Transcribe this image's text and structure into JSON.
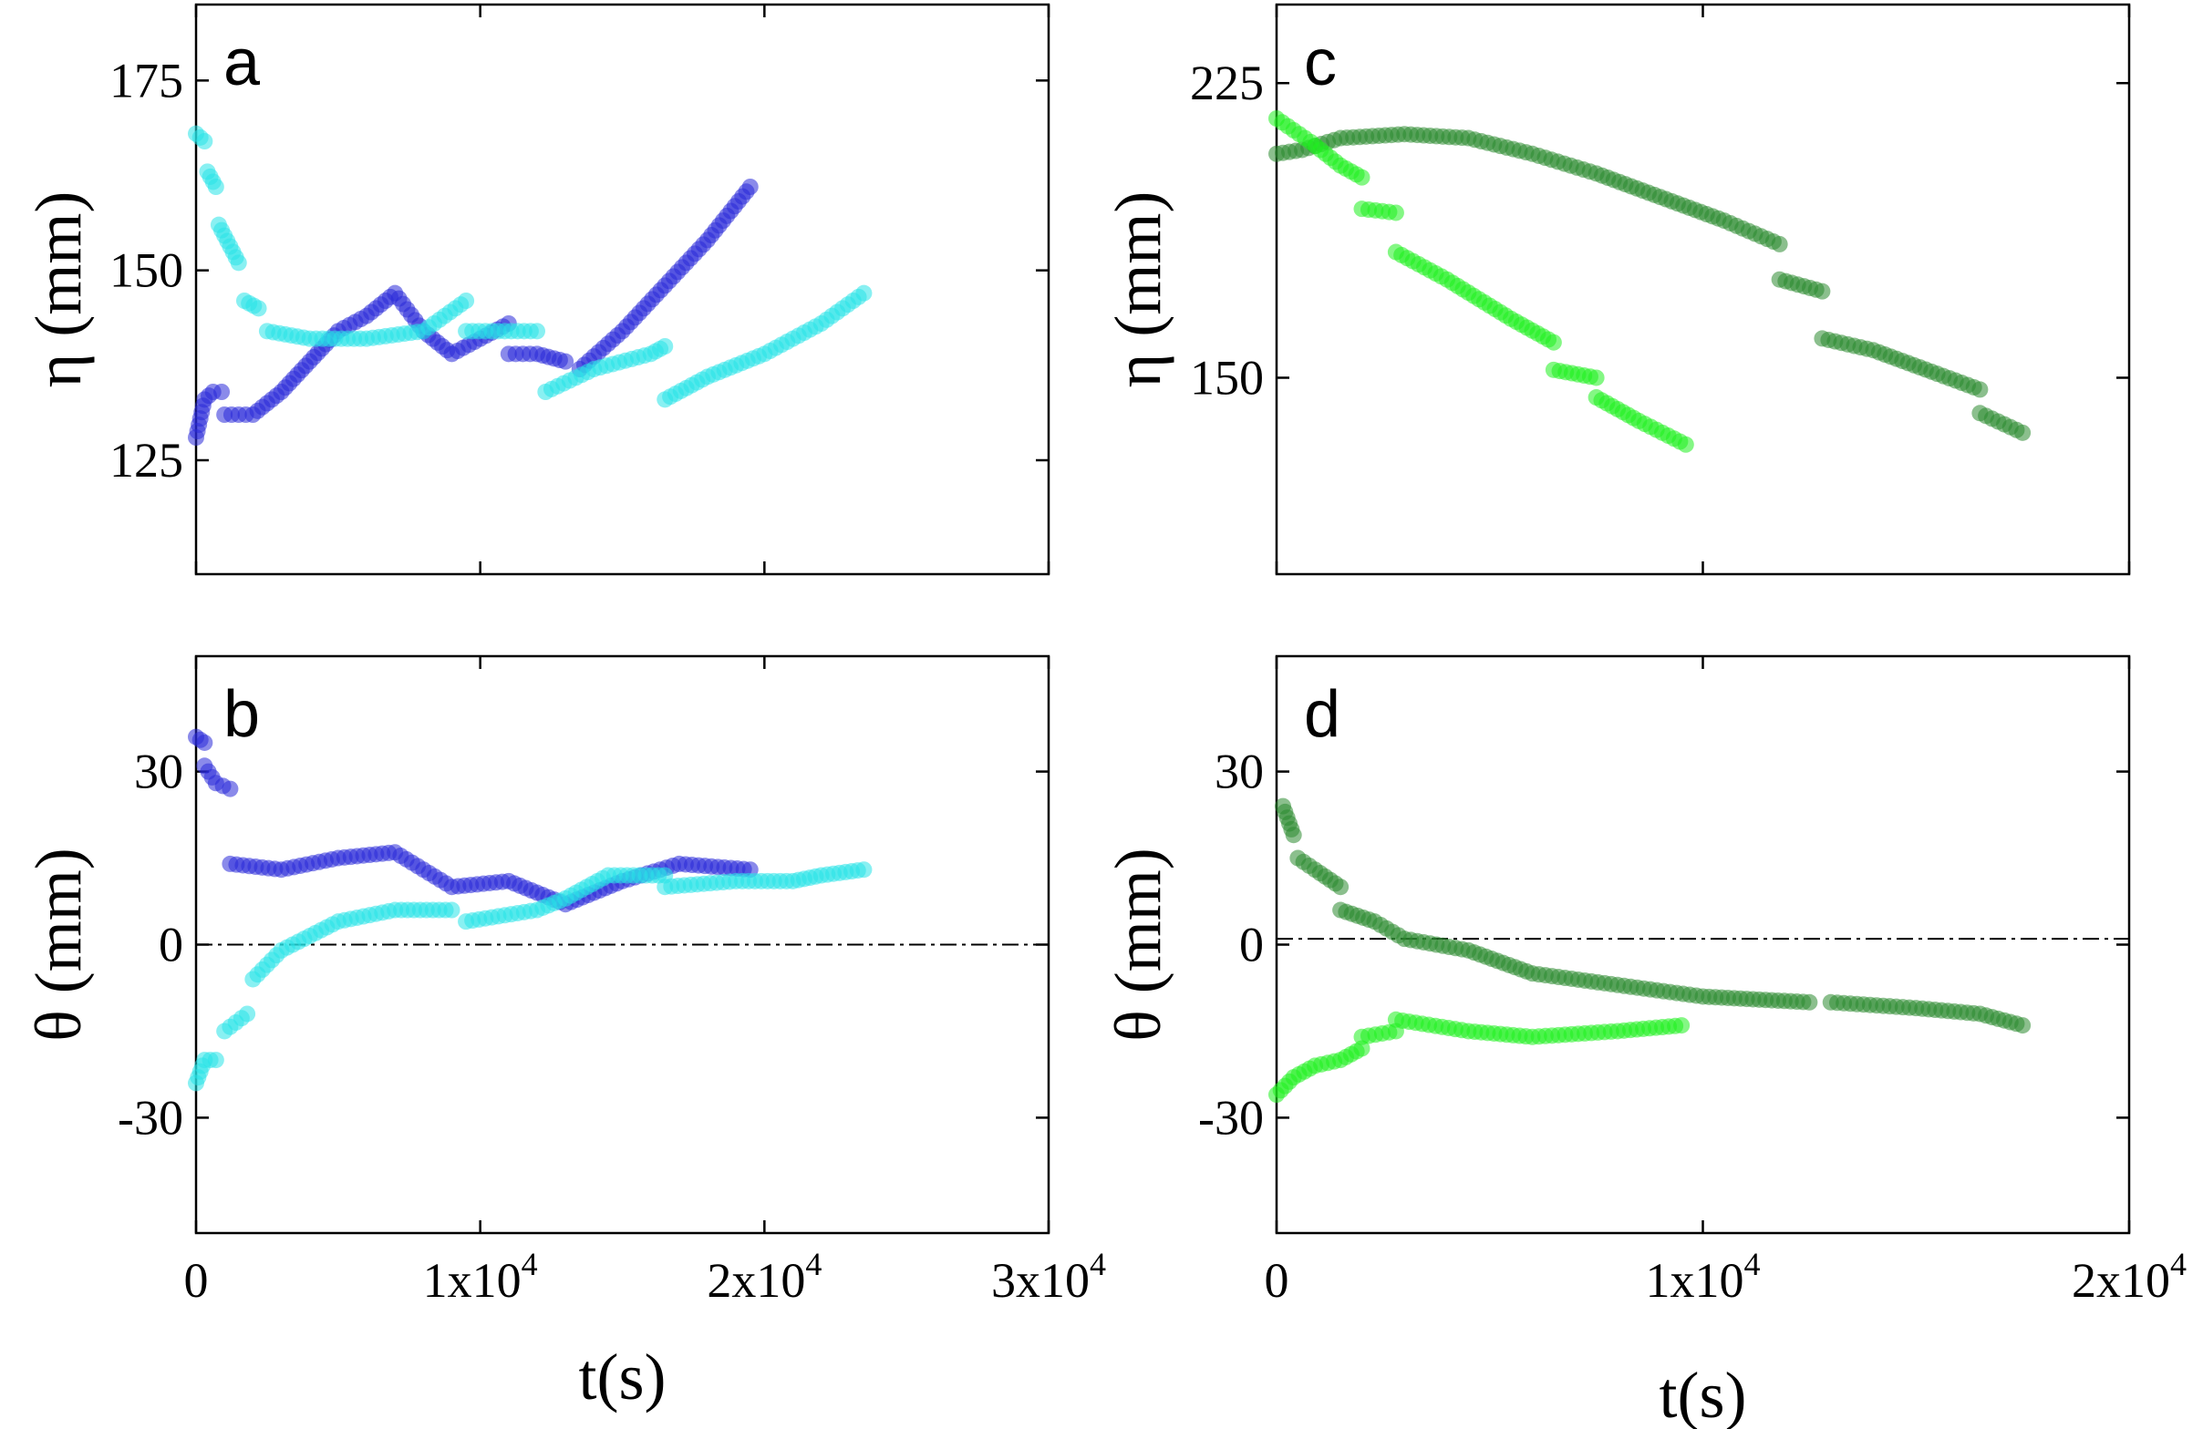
{
  "chart_data": [
    {
      "panel": "a",
      "type": "scatter",
      "ylabel": "η (mm)",
      "xlim": [
        0,
        30000
      ],
      "ylim": [
        110,
        185
      ],
      "x_ticks": [
        0,
        10000,
        20000,
        30000
      ],
      "y_ticks": [
        125,
        150,
        175
      ],
      "y_tick_labels": [
        "125",
        "150",
        "175"
      ],
      "series": [
        {
          "color": "#2a2ad8",
          "segments": [
            [
              [
                0,
                128
              ],
              [
                300,
                133
              ],
              [
                600,
                134
              ],
              [
                900,
                134
              ]
            ],
            [
              [
                1000,
                131
              ],
              [
                2000,
                131
              ],
              [
                3000,
                134
              ],
              [
                4000,
                138
              ],
              [
                5000,
                142
              ],
              [
                6000,
                144
              ],
              [
                7000,
                147
              ],
              [
                8000,
                142
              ],
              [
                9000,
                139
              ],
              [
                10000,
                141
              ],
              [
                11000,
                143
              ]
            ],
            [
              [
                11000,
                139
              ],
              [
                12000,
                139
              ],
              [
                13000,
                138
              ]
            ],
            [
              [
                13500,
                137
              ],
              [
                15000,
                142
              ],
              [
                16500,
                148
              ],
              [
                18000,
                154
              ],
              [
                19500,
                161
              ]
            ]
          ]
        },
        {
          "color": "#28e4e8",
          "segments": [
            [
              [
                0,
                168
              ],
              [
                300,
                167
              ]
            ],
            [
              [
                400,
                163
              ],
              [
                700,
                161
              ]
            ],
            [
              [
                800,
                156
              ],
              [
                1500,
                151
              ]
            ],
            [
              [
                1700,
                146
              ],
              [
                2200,
                145
              ]
            ],
            [
              [
                2500,
                142
              ],
              [
                4000,
                141
              ],
              [
                6000,
                141
              ],
              [
                8000,
                142
              ],
              [
                9500,
                146
              ]
            ],
            [
              [
                9500,
                142
              ],
              [
                12000,
                142
              ]
            ],
            [
              [
                12300,
                134
              ],
              [
                14000,
                137
              ],
              [
                16000,
                139
              ],
              [
                16500,
                140
              ]
            ],
            [
              [
                16500,
                133
              ],
              [
                18000,
                136
              ],
              [
                20000,
                139
              ],
              [
                22000,
                143
              ],
              [
                23500,
                147
              ]
            ]
          ]
        }
      ]
    },
    {
      "panel": "b",
      "type": "scatter",
      "xlabel": "t(s)",
      "ylabel": "θ (mm)",
      "xlim": [
        0,
        30000
      ],
      "ylim": [
        -50,
        50
      ],
      "x_ticks": [
        0,
        10000,
        20000,
        30000
      ],
      "x_tick_labels": [
        "0",
        "1x10",
        "2x10",
        "3x10"
      ],
      "x_tick_exponents": [
        "",
        "4",
        "4",
        "4"
      ],
      "y_ticks": [
        -30,
        0,
        30
      ],
      "y_tick_labels": [
        "-30",
        "0",
        "30"
      ],
      "reference_line_y": 0,
      "series": [
        {
          "color": "#2a2ad8",
          "segments": [
            [
              [
                0,
                36
              ],
              [
                300,
                35
              ]
            ],
            [
              [
                300,
                31
              ],
              [
                700,
                28
              ],
              [
                1200,
                27
              ]
            ],
            [
              [
                1200,
                14
              ],
              [
                3000,
                13
              ],
              [
                5000,
                15
              ],
              [
                7000,
                16
              ],
              [
                8000,
                13
              ],
              [
                9000,
                10
              ],
              [
                11000,
                11
              ],
              [
                13000,
                7
              ],
              [
                15000,
                11
              ],
              [
                17000,
                14
              ],
              [
                19500,
                13
              ]
            ]
          ]
        },
        {
          "color": "#28e4e8",
          "segments": [
            [
              [
                0,
                -24
              ],
              [
                300,
                -20
              ],
              [
                700,
                -20
              ]
            ],
            [
              [
                1000,
                -15
              ],
              [
                1800,
                -12
              ]
            ],
            [
              [
                2000,
                -6
              ],
              [
                3000,
                -1
              ],
              [
                5000,
                4
              ],
              [
                7000,
                6
              ],
              [
                9000,
                6
              ]
            ],
            [
              [
                9500,
                4
              ],
              [
                12000,
                6
              ],
              [
                13000,
                8
              ],
              [
                14500,
                12
              ],
              [
                16500,
                12
              ]
            ],
            [
              [
                16500,
                10
              ],
              [
                19000,
                11
              ],
              [
                21000,
                11
              ],
              [
                22000,
                12
              ],
              [
                23500,
                13
              ]
            ]
          ]
        }
      ]
    },
    {
      "panel": "c",
      "type": "scatter",
      "ylabel": "η (mm)",
      "xlim": [
        0,
        20000
      ],
      "ylim": [
        100,
        245
      ],
      "x_ticks": [
        0,
        10000,
        20000
      ],
      "y_ticks": [
        150,
        225
      ],
      "y_tick_labels": [
        "150",
        "225"
      ],
      "series": [
        {
          "color": "#2c8a30",
          "segments": [
            [
              [
                0,
                207
              ],
              [
                600,
                208
              ],
              [
                1500,
                211
              ],
              [
                3000,
                212
              ],
              [
                4500,
                211
              ],
              [
                6000,
                207
              ],
              [
                7500,
                202
              ],
              [
                9000,
                196
              ],
              [
                10500,
                190
              ],
              [
                11800,
                184
              ]
            ],
            [
              [
                11800,
                175
              ],
              [
                12800,
                172
              ]
            ],
            [
              [
                12800,
                160
              ],
              [
                14000,
                157
              ],
              [
                15500,
                151
              ],
              [
                16500,
                147
              ]
            ],
            [
              [
                16500,
                141
              ],
              [
                17500,
                136
              ]
            ]
          ]
        },
        {
          "color": "#1ff01f",
          "segments": [
            [
              [
                0,
                216
              ],
              [
                800,
                210
              ],
              [
                1500,
                204
              ],
              [
                2000,
                201
              ]
            ],
            [
              [
                2000,
                193
              ],
              [
                2800,
                192
              ]
            ],
            [
              [
                2800,
                182
              ],
              [
                4000,
                175
              ],
              [
                5500,
                165
              ],
              [
                6500,
                159
              ]
            ],
            [
              [
                6500,
                152
              ],
              [
                7500,
                150
              ]
            ],
            [
              [
                7500,
                145
              ],
              [
                8500,
                139
              ],
              [
                9600,
                133
              ]
            ]
          ]
        }
      ]
    },
    {
      "panel": "d",
      "type": "scatter",
      "xlabel": "t(s)",
      "ylabel": "θ (mm)",
      "xlim": [
        0,
        20000
      ],
      "ylim": [
        -50,
        50
      ],
      "x_ticks": [
        0,
        10000,
        20000
      ],
      "x_tick_labels": [
        "0",
        "1x10",
        "2x10"
      ],
      "x_tick_exponents": [
        "",
        "4",
        "4"
      ],
      "y_ticks": [
        -30,
        0,
        30
      ],
      "y_tick_labels": [
        "-30",
        "0",
        "30"
      ],
      "reference_line_y": 1,
      "series": [
        {
          "color": "#2c8a30",
          "segments": [
            [
              [
                150,
                24
              ],
              [
                400,
                19
              ]
            ],
            [
              [
                500,
                15
              ],
              [
                900,
                13
              ],
              [
                1500,
                10
              ]
            ],
            [
              [
                1500,
                6
              ],
              [
                2300,
                4
              ],
              [
                3000,
                1
              ],
              [
                4500,
                -1
              ],
              [
                6000,
                -5
              ],
              [
                8000,
                -7
              ],
              [
                10000,
                -9
              ],
              [
                12500,
                -10
              ]
            ],
            [
              [
                13000,
                -10
              ],
              [
                15000,
                -11
              ],
              [
                16500,
                -12
              ],
              [
                17500,
                -14
              ]
            ]
          ]
        },
        {
          "color": "#1ff01f",
          "segments": [
            [
              [
                0,
                -26
              ],
              [
                400,
                -23
              ],
              [
                900,
                -21
              ],
              [
                1500,
                -20
              ],
              [
                2000,
                -18
              ]
            ],
            [
              [
                2000,
                -16
              ],
              [
                2800,
                -15
              ]
            ],
            [
              [
                2800,
                -13
              ],
              [
                4500,
                -15
              ],
              [
                6000,
                -16
              ],
              [
                8000,
                -15
              ],
              [
                9500,
                -14
              ]
            ]
          ]
        }
      ]
    }
  ]
}
